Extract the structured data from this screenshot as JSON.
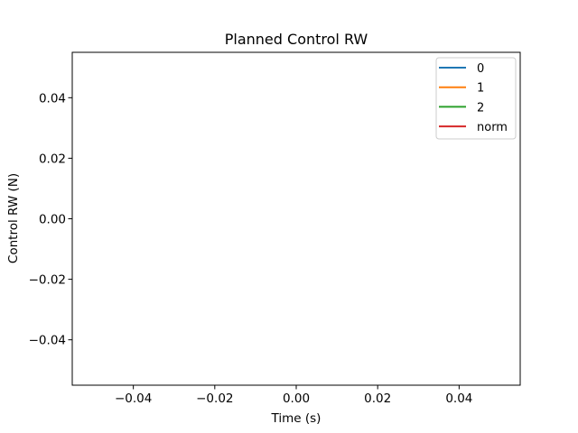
{
  "chart_data": {
    "type": "line",
    "title": "Planned Control RW",
    "xlabel": "Time (s)",
    "ylabel": "Control RW (N)",
    "xlim": [
      -0.055,
      0.055
    ],
    "ylim": [
      -0.055,
      0.055
    ],
    "x_ticks": [
      -0.04,
      -0.02,
      0.0,
      0.02,
      0.04
    ],
    "x_tick_labels": [
      "−0.04",
      "−0.02",
      "0.00",
      "0.02",
      "0.04"
    ],
    "y_ticks": [
      0.04,
      0.02,
      0.0,
      -0.02,
      -0.04
    ],
    "y_tick_labels": [
      "0.04",
      "0.02",
      "0.00",
      "−0.02",
      "−0.04"
    ],
    "grid": false,
    "legend_position": "top-right",
    "series": [
      {
        "name": "0",
        "color": "#1f77b4",
        "x": [],
        "y": []
      },
      {
        "name": "1",
        "color": "#ff7f0e",
        "x": [],
        "y": []
      },
      {
        "name": "2",
        "color": "#2ca02c",
        "x": [],
        "y": []
      },
      {
        "name": "norm",
        "color": "#d62728",
        "x": [],
        "y": []
      }
    ]
  }
}
